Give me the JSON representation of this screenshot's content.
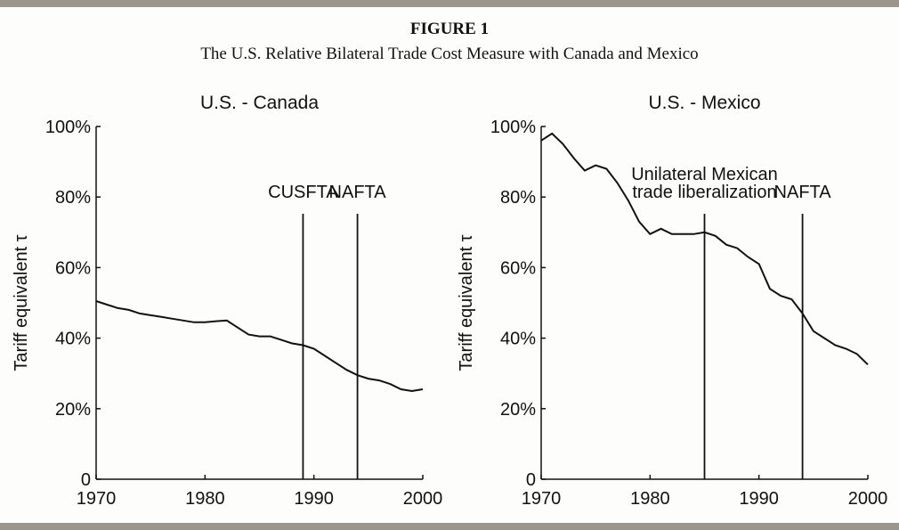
{
  "figure": {
    "label": "FIGURE 1",
    "title": "The U.S. Relative Bilateral Trade Cost Measure with Canada and Mexico"
  },
  "chart_data": [
    {
      "type": "line",
      "title": "U.S. - Canada",
      "y_label": "Tariff equivalent τ",
      "x": [
        1970,
        1971,
        1972,
        1973,
        1974,
        1975,
        1976,
        1977,
        1978,
        1979,
        1980,
        1981,
        1982,
        1983,
        1984,
        1985,
        1986,
        1987,
        1988,
        1989,
        1990,
        1991,
        1992,
        1993,
        1994,
        1995,
        1996,
        1997,
        1998,
        1999,
        2000
      ],
      "series": [
        {
          "color": "#111111",
          "values": [
            50.5,
            49.5,
            48.5,
            48,
            47,
            46.5,
            46,
            45.5,
            45,
            44.5,
            44.5,
            44.8,
            45,
            43,
            41,
            40.5,
            40.5,
            39.5,
            38.5,
            38,
            37,
            35,
            33,
            31,
            29.5,
            28.5,
            28,
            27,
            25.5,
            25,
            25.5
          ]
        }
      ],
      "xlim": [
        1970,
        2000
      ],
      "xticks": [
        1970,
        1980,
        1990,
        2000
      ],
      "ylim": [
        0,
        100
      ],
      "yticks": [
        0,
        {
          "value": 20,
          "label": "20%"
        },
        {
          "value": 40,
          "label": "40%"
        },
        {
          "value": 60,
          "label": "60%"
        },
        {
          "value": 80,
          "label": "80%"
        },
        {
          "value": 100,
          "label": "100%"
        }
      ],
      "annotations": [
        {
          "text": "CUSFTA",
          "x": 1989
        },
        {
          "text": "NAFTA",
          "x": 1994
        }
      ]
    },
    {
      "type": "line",
      "title": "U.S. - Mexico",
      "y_label": "Tariff equivalent τ",
      "x": [
        1970,
        1971,
        1972,
        1973,
        1974,
        1975,
        1976,
        1977,
        1978,
        1979,
        1980,
        1981,
        1982,
        1983,
        1984,
        1985,
        1986,
        1987,
        1988,
        1989,
        1990,
        1991,
        1992,
        1993,
        1994,
        1995,
        1996,
        1997,
        1998,
        1999,
        2000
      ],
      "series": [
        {
          "color": "#111111",
          "values": [
            96,
            98,
            95,
            91,
            87.5,
            89,
            88,
            84,
            79,
            73,
            69.5,
            71,
            69.5,
            69.5,
            69.5,
            70,
            69,
            66.5,
            65.5,
            63,
            61,
            54,
            52,
            51,
            47,
            42,
            40,
            38,
            37,
            35.5,
            32.5
          ]
        }
      ],
      "xlim": [
        1970,
        2000
      ],
      "xticks": [
        1970,
        1980,
        1990,
        2000
      ],
      "ylim": [
        0,
        100
      ],
      "yticks": [
        0,
        {
          "value": 20,
          "label": "20%"
        },
        {
          "value": 40,
          "label": "40%"
        },
        {
          "value": 60,
          "label": "60%"
        },
        {
          "value": 80,
          "label": "80%"
        },
        {
          "value": 100,
          "label": "100%"
        }
      ],
      "annotations": [
        {
          "text": [
            "Unilateral Mexican",
            "trade liberalization"
          ],
          "x": 1985
        },
        {
          "text": "NAFTA",
          "x": 1994
        }
      ]
    }
  ]
}
